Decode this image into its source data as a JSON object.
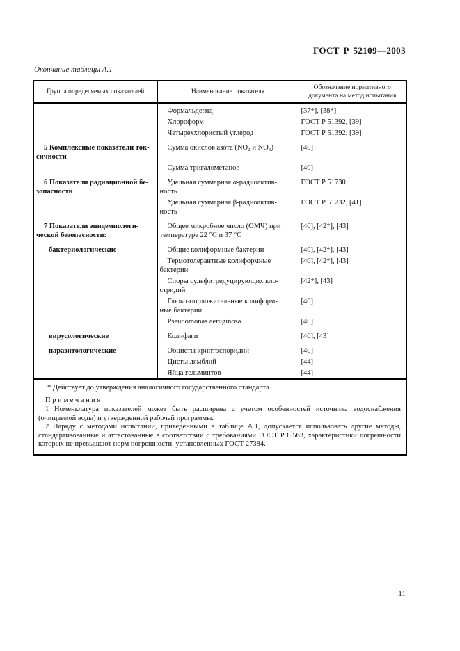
{
  "header": {
    "doc_number": "ГОСТ Р 52109—2003"
  },
  "table": {
    "caption": "Окончание таблицы А.1",
    "columns": [
      "Группа определяемых показателей",
      "Наименование показателя",
      "Обозначение нормативного\nдокумента на метод испытания"
    ],
    "rows": [
      {
        "group": "",
        "name": "Формальдегид",
        "ref": "[37*], [38*]"
      },
      {
        "group": "",
        "name": "Хлороформ",
        "ref": "ГОСТ Р 51392, [39]"
      },
      {
        "group": "",
        "name": "Четыреххлористый углерод",
        "ref": "ГОСТ Р 51392, [39]"
      },
      {
        "group": "5 Комплексные показатели ток-\nсичности",
        "name": "Сумма окислов азота (NO₂ и NO₃)",
        "ref": "[40]"
      },
      {
        "group": "",
        "name": "Сумма тригалометанов",
        "ref": "[40]"
      },
      {
        "group": "6 Показатели радиационной бе-\nзопасности",
        "name": "Удельная суммарная α-радиоактив-\nность",
        "ref": "ГОСТ Р 51730"
      },
      {
        "group": "",
        "name": "Удельная суммарная β-радиоактив-\nность",
        "ref": "ГОСТ Р 51232, [41]"
      },
      {
        "group": "7 Показатели эпидемиологи-\nческой безопасности:",
        "name": "Общее микробное число (ОМЧ) при\nтемпературе 22 °С и 37 °С",
        "ref": "[40], [42*], [43]"
      },
      {
        "group": "бактериологические",
        "name": "Общие колиформные бактерии",
        "ref": "[40], [42*], [43]"
      },
      {
        "group": "",
        "name": "Термотолерантные колиформные\nбактерии",
        "ref": "[40], [42*], [43]"
      },
      {
        "group": "",
        "name": "Споры сульфитредуцирующих кло-\nстридий",
        "ref": "[42*], [43]"
      },
      {
        "group": "",
        "name": "Глюкозоположительные колиформ-\nные бактерии",
        "ref": "[40]"
      },
      {
        "group": "",
        "name": "Pseudomonas aeruginosa",
        "ref": "[40]"
      },
      {
        "group": "вирусологические",
        "name": "Колифаги",
        "ref": "[40], [43]"
      },
      {
        "group": "паразитологические",
        "name": "Ооцисты криптоспоридий",
        "ref": "[40]"
      },
      {
        "group": "",
        "name": "Цисты лямблий",
        "ref": "[44]"
      },
      {
        "group": "",
        "name": "Яйца гельминтов",
        "ref": "[44]"
      }
    ],
    "notes": {
      "footnote": "* Действует до утверждения аналогичного государственного стандарта.",
      "heading": "П р и м е ч а н и я",
      "note1": "1 Номенклатура показателей может быть расширена с учетом особенностей источника водоснабжения (очищаемой воды) и утвержденной рабочей программы.",
      "note2": "2 Наряду с методами испытаний, приведенными в таблице А.1, допускается использовать другие методы, стандартизованные и аттестованные в соответствии с требованиями ГОСТ Р 8.563, характеристики погрешности которых не превышают норм погрешности, установленных ГОСТ 27384."
    }
  },
  "footer": {
    "page_number": "11"
  }
}
